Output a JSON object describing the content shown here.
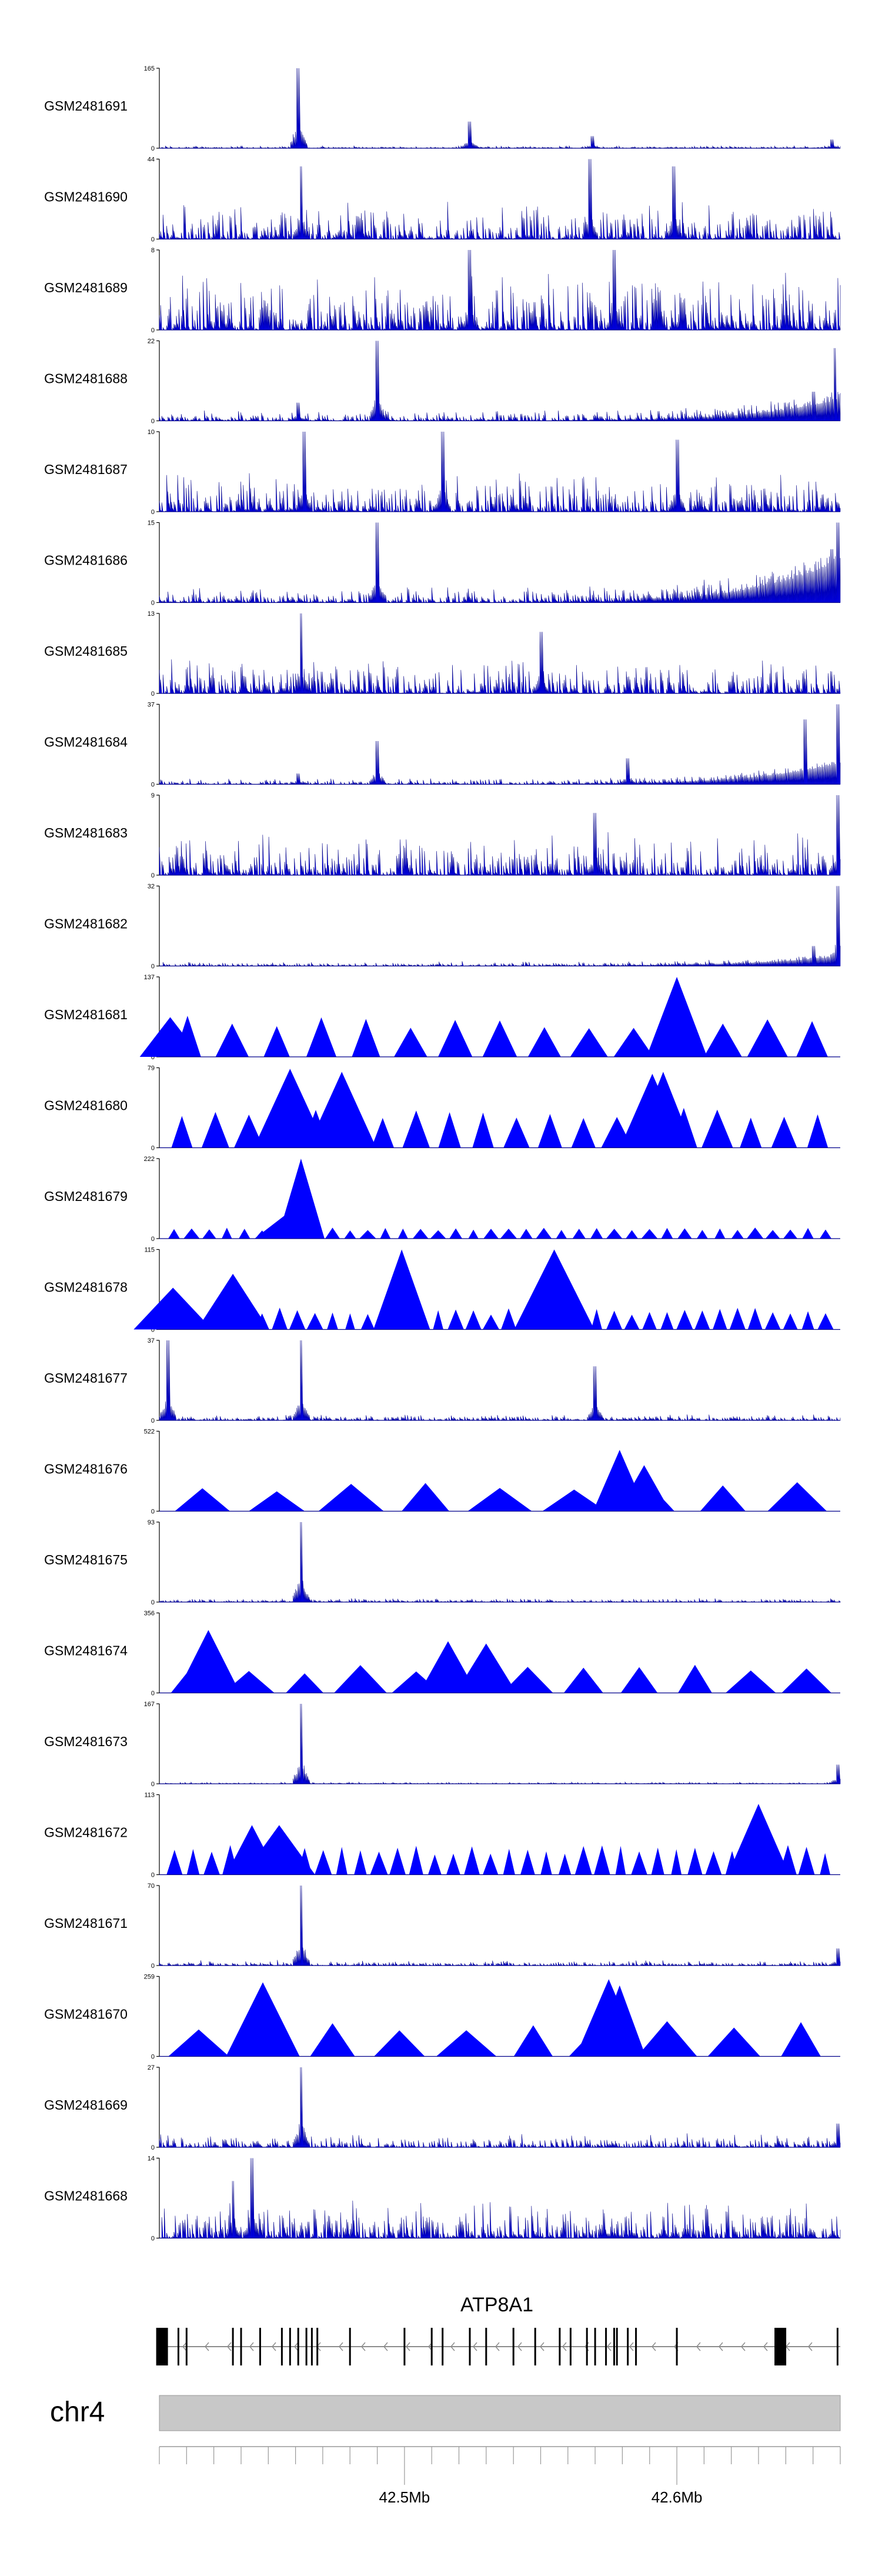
{
  "chart_data": {
    "type": "area",
    "x_range_mb": [
      42.41,
      42.66
    ],
    "signal_color": "#0000ff",
    "tracks": [
      {
        "name": "GSM2481691",
        "ymax": 165,
        "style": "signal",
        "peaks": [
          [
            42.461,
            165
          ],
          [
            42.524,
            55
          ],
          [
            42.569,
            25
          ],
          [
            42.657,
            18
          ]
        ],
        "noise": 6,
        "rise": 0
      },
      {
        "name": "GSM2481690",
        "ymax": 44,
        "style": "signal",
        "peaks": [
          [
            42.462,
            40
          ],
          [
            42.568,
            44
          ],
          [
            42.599,
            40
          ]
        ],
        "noise": 22,
        "rise": 0
      },
      {
        "name": "GSM2481689",
        "ymax": 8,
        "style": "signal",
        "peaks": [
          [
            42.524,
            8
          ],
          [
            42.577,
            8
          ]
        ],
        "noise": 6,
        "rise": 0
      },
      {
        "name": "GSM2481688",
        "ymax": 22,
        "style": "signal",
        "peaks": [
          [
            42.49,
            22
          ],
          [
            42.461,
            5
          ],
          [
            42.658,
            20
          ],
          [
            42.65,
            8
          ]
        ],
        "noise": 3,
        "rise": 6
      },
      {
        "name": "GSM2481687",
        "ymax": 10,
        "style": "signal",
        "peaks": [
          [
            42.463,
            10
          ],
          [
            42.514,
            10
          ],
          [
            42.6,
            9
          ]
        ],
        "noise": 5,
        "rise": 0
      },
      {
        "name": "GSM2481686",
        "ymax": 15,
        "style": "signal",
        "peaks": [
          [
            42.49,
            15
          ],
          [
            42.659,
            15
          ],
          [
            42.657,
            10
          ]
        ],
        "noise": 3,
        "rise": 8
      },
      {
        "name": "GSM2481685",
        "ymax": 13,
        "style": "signal",
        "peaks": [
          [
            42.462,
            13
          ],
          [
            42.55,
            10
          ]
        ],
        "noise": 6,
        "rise": 0
      },
      {
        "name": "GSM2481684",
        "ymax": 37,
        "style": "signal",
        "peaks": [
          [
            42.49,
            20
          ],
          [
            42.461,
            5
          ],
          [
            42.582,
            12
          ],
          [
            42.647,
            30
          ],
          [
            42.659,
            37
          ]
        ],
        "noise": 3,
        "rise": 10
      },
      {
        "name": "GSM2481683",
        "ymax": 9,
        "style": "signal",
        "peaks": [
          [
            42.659,
            9
          ],
          [
            42.57,
            7
          ]
        ],
        "noise": 5,
        "rise": 0
      },
      {
        "name": "GSM2481682",
        "ymax": 32,
        "style": "signal",
        "peaks": [
          [
            42.659,
            32
          ],
          [
            42.65,
            8
          ]
        ],
        "noise": 2,
        "rise": 4
      },
      {
        "name": "GSM2481681",
        "ymax": 137,
        "style": "triangles",
        "peaks": [
          [
            42.6,
            137
          ],
          [
            42.414,
            68
          ]
        ],
        "count": 15,
        "tri_height": 68
      },
      {
        "name": "GSM2481680",
        "ymax": 79,
        "style": "triangles",
        "peaks": [
          [
            42.458,
            78
          ],
          [
            42.477,
            75
          ],
          [
            42.591,
            73
          ],
          [
            42.595,
            75
          ]
        ],
        "count": 20,
        "tri_height": 40
      },
      {
        "name": "GSM2481679",
        "ymax": 222,
        "style": "triangles",
        "peaks": [
          [
            42.462,
            222
          ],
          [
            42.457,
            70
          ]
        ],
        "count": 38,
        "tri_height": 30
      },
      {
        "name": "GSM2481678",
        "ymax": 115,
        "style": "triangles",
        "peaks": [
          [
            42.499,
            115
          ],
          [
            42.555,
            115
          ],
          [
            42.415,
            60
          ],
          [
            42.437,
            80
          ]
        ],
        "count": 38,
        "tri_height": 30
      },
      {
        "name": "GSM2481677",
        "ymax": 37,
        "style": "signal",
        "peaks": [
          [
            42.413,
            37
          ],
          [
            42.462,
            37
          ],
          [
            42.57,
            25
          ]
        ],
        "noise": 3,
        "rise": 0
      },
      {
        "name": "GSM2481676",
        "ymax": 522,
        "style": "triangles",
        "peaks": [
          [
            42.579,
            400
          ],
          [
            42.588,
            300
          ]
        ],
        "count": 9,
        "tri_height": 180
      },
      {
        "name": "GSM2481675",
        "ymax": 93,
        "style": "signal",
        "peaks": [
          [
            42.462,
            93
          ]
        ],
        "noise": 5,
        "rise": 0
      },
      {
        "name": "GSM2481674",
        "ymax": 356,
        "style": "triangles",
        "peaks": [
          [
            42.428,
            280
          ],
          [
            42.516,
            230
          ],
          [
            42.53,
            220
          ]
        ],
        "count": 12,
        "tri_height": 120
      },
      {
        "name": "GSM2481673",
        "ymax": 167,
        "style": "signal",
        "peaks": [
          [
            42.462,
            167
          ],
          [
            42.659,
            40
          ]
        ],
        "noise": 4,
        "rise": 0
      },
      {
        "name": "GSM2481672",
        "ymax": 113,
        "style": "triangles",
        "peaks": [
          [
            42.444,
            70
          ],
          [
            42.454,
            70
          ],
          [
            42.63,
            100
          ]
        ],
        "count": 36,
        "tri_height": 40
      },
      {
        "name": "GSM2481671",
        "ymax": 70,
        "style": "signal",
        "peaks": [
          [
            42.462,
            70
          ],
          [
            42.659,
            15
          ]
        ],
        "noise": 5,
        "rise": 0
      },
      {
        "name": "GSM2481670",
        "ymax": 259,
        "style": "triangles",
        "peaks": [
          [
            42.448,
            240
          ],
          [
            42.575,
            250
          ],
          [
            42.579,
            230
          ]
        ],
        "count": 10,
        "tri_height": 120
      },
      {
        "name": "GSM2481669",
        "ymax": 27,
        "style": "signal",
        "peaks": [
          [
            42.462,
            27
          ],
          [
            42.659,
            8
          ]
        ],
        "noise": 5,
        "rise": 0
      },
      {
        "name": "GSM2481668",
        "ymax": 14,
        "style": "signal",
        "peaks": [
          [
            42.444,
            14
          ],
          [
            42.437,
            10
          ]
        ],
        "noise": 7,
        "rise": 0
      }
    ],
    "gene": {
      "name": "ATP8A1",
      "strand": "-",
      "start_mb": 42.41,
      "end_mb": 42.66,
      "exons_mb": [
        42.411,
        42.417,
        42.42,
        42.437,
        42.44,
        42.447,
        42.455,
        42.458,
        42.461,
        42.464,
        42.466,
        42.468,
        42.48,
        42.5,
        42.51,
        42.514,
        42.524,
        42.53,
        42.54,
        42.548,
        42.557,
        42.561,
        42.567,
        42.57,
        42.574,
        42.577,
        42.578,
        42.582,
        42.585,
        42.6,
        42.638,
        42.659
      ]
    },
    "chromosome": "chr4",
    "axis_ticks": [
      {
        "value": 42.5,
        "label": "42.5Mb"
      },
      {
        "value": 42.6,
        "label": "42.6Mb"
      }
    ]
  }
}
